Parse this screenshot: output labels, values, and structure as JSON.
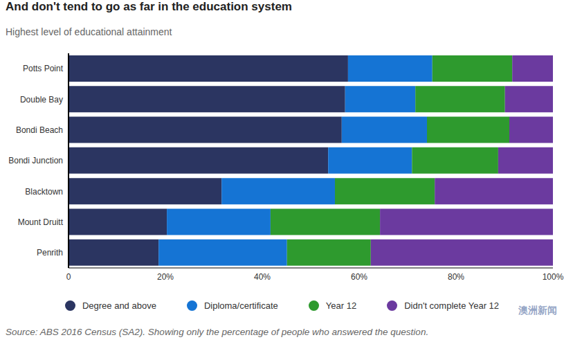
{
  "chart_data": {
    "type": "bar",
    "orientation": "horizontal",
    "stacked": true,
    "title": "And don't tend to go as far in the education system",
    "subtitle": "Highest level of educational attainment",
    "source": "Source: ABS 2016 Census (SA2). Showing only the percentage of people who answered the question.",
    "watermark": "澳洲新闻",
    "categories": [
      "Potts Point",
      "Double Bay",
      "Bondi Beach",
      "Bondi Junction",
      "Blacktown",
      "Mount Druitt",
      "Penrith"
    ],
    "series": [
      {
        "name": "Degree and above",
        "color": "#2b3561",
        "values": [
          57.7,
          57.1,
          56.4,
          53.6,
          31.6,
          20.3,
          18.6
        ]
      },
      {
        "name": "Diploma/certificate",
        "color": "#1574d4",
        "values": [
          17.4,
          14.5,
          17.6,
          17.3,
          23.4,
          21.4,
          26.5
        ]
      },
      {
        "name": "Year 12",
        "color": "#2e9a2e",
        "values": [
          16.5,
          18.5,
          17.0,
          17.8,
          20.6,
          22.6,
          17.3
        ]
      },
      {
        "name": "Didn't complete Year 12",
        "color": "#6b3a9f",
        "values": [
          8.4,
          9.9,
          9.0,
          11.3,
          24.4,
          35.7,
          37.6
        ]
      }
    ],
    "xlim": [
      0,
      100
    ],
    "xticks": [
      0,
      {
        "value": 20,
        "label": "20%"
      },
      {
        "value": 40,
        "label": "40%"
      },
      {
        "value": 60,
        "label": "60%"
      },
      {
        "value": 80,
        "label": "80%"
      },
      {
        "value": 100,
        "label": "100%"
      }
    ],
    "grid": false,
    "legend": "bottom"
  }
}
